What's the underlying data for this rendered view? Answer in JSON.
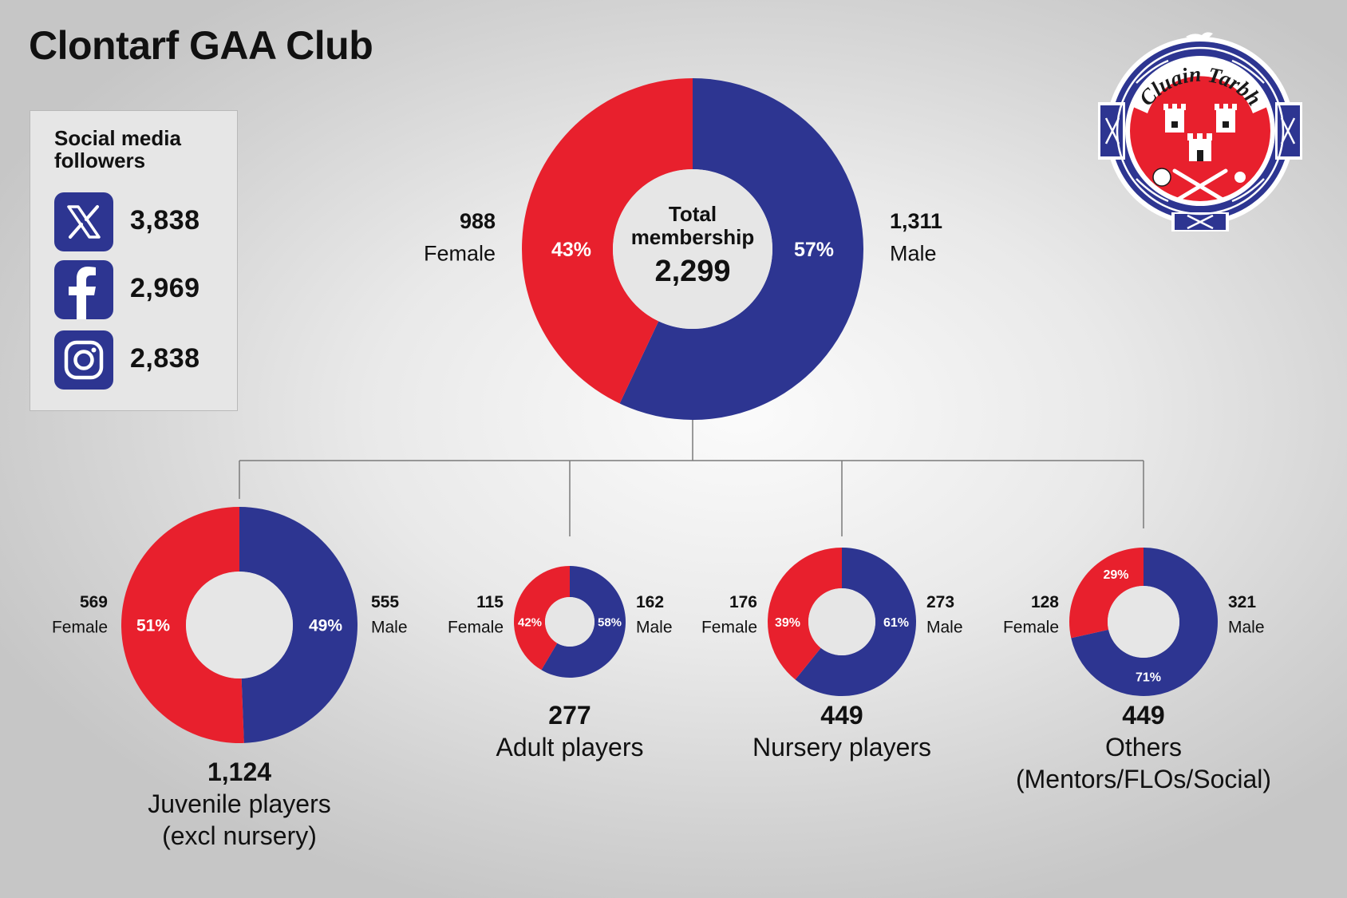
{
  "title": "Clontarf GAA Club",
  "social": {
    "title": "Social media followers",
    "items": [
      {
        "platform": "x-icon",
        "count": "3,838"
      },
      {
        "platform": "facebook-icon",
        "count": "2,969"
      },
      {
        "platform": "instagram-icon",
        "count": "2,838"
      }
    ]
  },
  "logo": {
    "text": "Cluain Tarbh",
    "colors": {
      "blue": "#2d3591",
      "red": "#e8202d",
      "white": "#ffffff"
    }
  },
  "colors": {
    "female": "#e8202d",
    "male": "#2d3591",
    "hole": "#e6e6e6",
    "line": "#7a7a7a"
  },
  "chart_data": [
    {
      "type": "pie",
      "id": "total",
      "center_title": "Total membership",
      "total": "2,299",
      "female": {
        "label": "Female",
        "count": "988",
        "value": 988,
        "pct": "43%"
      },
      "male": {
        "label": "Male",
        "count": "1,311",
        "value": 1311,
        "pct": "57%"
      }
    },
    {
      "type": "pie",
      "id": "juvenile",
      "total": "1,124",
      "caption": [
        "Juvenile players",
        "(excl nursery)"
      ],
      "female": {
        "label": "Female",
        "count": "569",
        "value": 569,
        "pct": "51%"
      },
      "male": {
        "label": "Male",
        "count": "555",
        "value": 555,
        "pct": "49%"
      }
    },
    {
      "type": "pie",
      "id": "adult",
      "total": "277",
      "caption": [
        "Adult players"
      ],
      "female": {
        "label": "Female",
        "count": "115",
        "value": 115,
        "pct": "42%"
      },
      "male": {
        "label": "Male",
        "count": "162",
        "value": 162,
        "pct": "58%"
      }
    },
    {
      "type": "pie",
      "id": "nursery",
      "total": "449",
      "caption": [
        "Nursery players"
      ],
      "female": {
        "label": "Female",
        "count": "176",
        "value": 176,
        "pct": "39%"
      },
      "male": {
        "label": "Male",
        "count": "273",
        "value": 273,
        "pct": "61%"
      }
    },
    {
      "type": "pie",
      "id": "others",
      "total": "449",
      "caption": [
        "Others",
        "(Mentors/FLOs/Social)"
      ],
      "female": {
        "label": "Female",
        "count": "128",
        "value": 128,
        "pct": "29%"
      },
      "male": {
        "label": "Male",
        "count": "321",
        "value": 321,
        "pct": "71%"
      }
    }
  ]
}
